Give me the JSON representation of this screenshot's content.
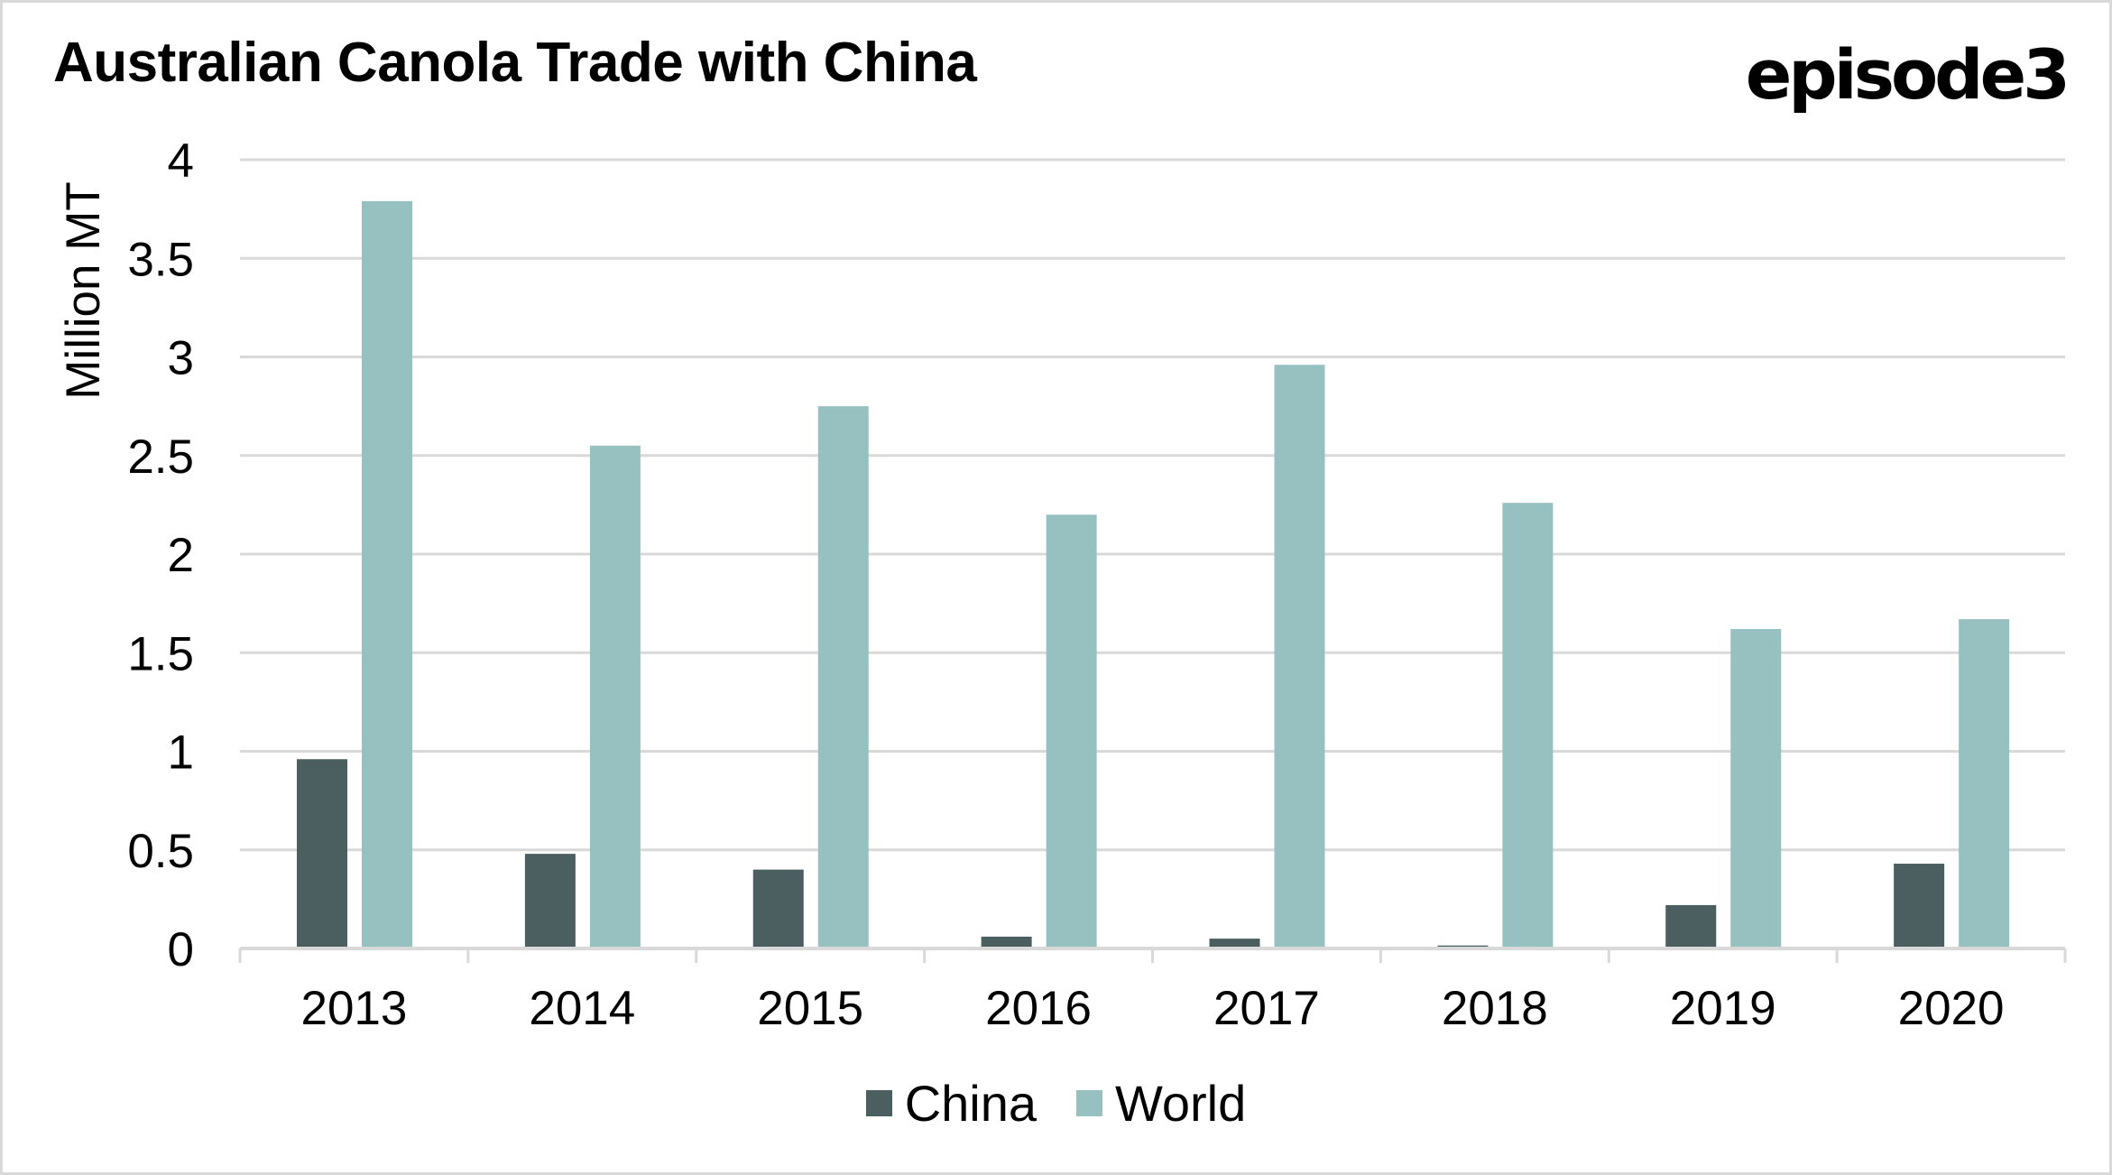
{
  "title": "Australian Canola Trade with China",
  "logo_text": "episode3",
  "chart_data": {
    "type": "bar",
    "title": "Australian Canola Trade with China",
    "xlabel": "",
    "ylabel": "Million MT",
    "ylim": [
      0,
      4
    ],
    "yticks": [
      "0",
      "0.5",
      "1",
      "1.5",
      "2",
      "2.5",
      "3",
      "3.5",
      "4"
    ],
    "ytick_values": [
      0,
      0.5,
      1,
      1.5,
      2,
      2.5,
      3,
      3.5,
      4
    ],
    "grid": true,
    "legend_position": "bottom",
    "categories": [
      "2013",
      "2014",
      "2015",
      "2016",
      "2017",
      "2018",
      "2019",
      "2020"
    ],
    "series": [
      {
        "name": "China",
        "color": "#4b5e60",
        "values": [
          0.96,
          0.48,
          0.4,
          0.06,
          0.05,
          0.015,
          0.22,
          0.43
        ]
      },
      {
        "name": "World",
        "color": "#97c1c0",
        "values": [
          3.79,
          2.55,
          2.75,
          2.2,
          2.96,
          2.26,
          1.62,
          1.67
        ]
      }
    ]
  },
  "colors": {
    "gridline": "#d9d9d9",
    "border": "#d9d9d9"
  }
}
